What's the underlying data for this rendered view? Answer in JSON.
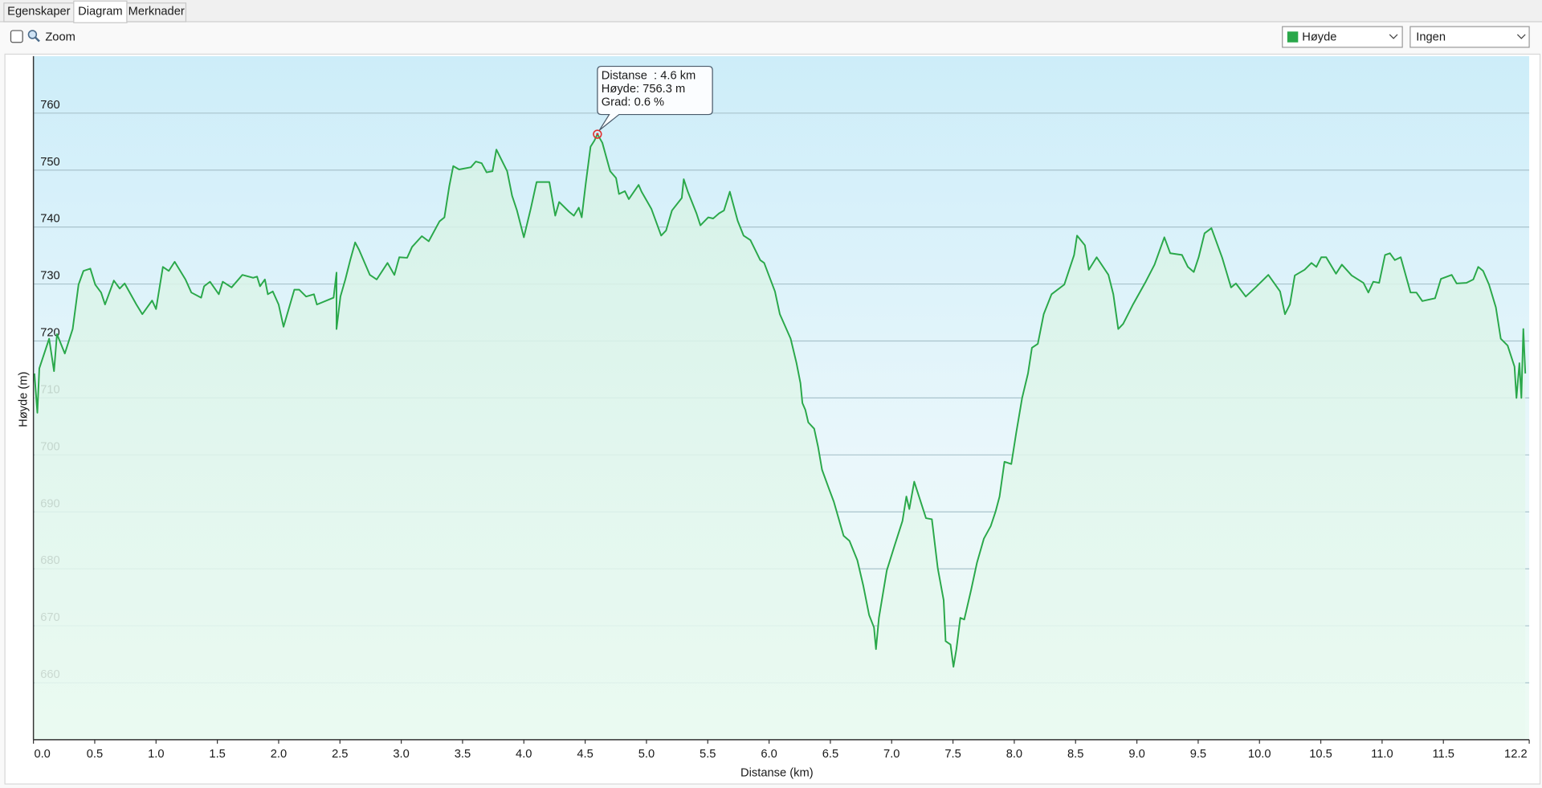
{
  "tabs": [
    "Egenskaper",
    "Diagram",
    "Merknader"
  ],
  "toolbar": {
    "zoom_label": "Zoom",
    "dropdown_2": "Ingen"
  },
  "chart_data": {
    "type": "area",
    "x_label": "Distanse  (km)",
    "y_label": "Høyde (m)",
    "x": [
      0.008,
      0.032,
      0.048,
      0.128,
      0.168,
      0.192,
      0.256,
      0.32,
      0.368,
      0.408,
      0.464,
      0.504,
      0.552,
      0.584,
      0.656,
      0.704,
      0.744,
      0.84,
      0.888,
      0.968,
      1.0,
      1.056,
      1.104,
      1.152,
      1.24,
      1.288,
      1.368,
      1.392,
      1.44,
      1.512,
      1.544,
      1.616,
      1.704,
      1.792,
      1.824,
      1.848,
      1.888,
      1.912,
      1.952,
      2.0,
      2.04,
      2.128,
      2.168,
      2.224,
      2.288,
      2.312,
      2.448,
      2.472,
      2.472,
      2.504,
      2.544,
      2.584,
      2.624,
      2.656,
      2.744,
      2.8,
      2.888,
      2.944,
      2.984,
      3.048,
      3.088,
      3.168,
      3.224,
      3.312,
      3.352,
      3.392,
      3.424,
      3.472,
      3.568,
      3.608,
      3.656,
      3.696,
      3.744,
      3.776,
      3.864,
      3.904,
      3.944,
      4.0,
      4.056,
      4.104,
      4.208,
      4.256,
      4.288,
      4.368,
      4.408,
      4.448,
      4.472,
      4.504,
      4.544,
      4.576,
      4.6,
      4.64,
      4.704,
      4.752,
      4.776,
      4.824,
      4.856,
      4.936,
      4.96,
      5.04,
      5.12,
      5.16,
      5.208,
      5.288,
      5.304,
      5.336,
      5.408,
      5.44,
      5.504,
      5.544,
      5.592,
      5.632,
      5.68,
      5.744,
      5.792,
      5.848,
      5.928,
      5.96,
      6.048,
      6.088,
      6.176,
      6.224,
      6.256,
      6.272,
      6.296,
      6.32,
      6.368,
      6.4,
      6.432,
      6.488,
      6.528,
      6.608,
      6.656,
      6.72,
      6.768,
      6.816,
      6.856,
      6.872,
      6.896,
      6.96,
      7.024,
      7.088,
      7.12,
      7.144,
      7.184,
      7.28,
      7.328,
      7.376,
      7.424,
      7.44,
      7.48,
      7.504,
      7.528,
      7.56,
      7.592,
      7.648,
      7.696,
      7.752,
      7.808,
      7.848,
      7.88,
      7.92,
      7.976,
      8.016,
      8.064,
      8.112,
      8.144,
      8.192,
      8.24,
      8.304,
      8.408,
      8.448,
      8.488,
      8.512,
      8.576,
      8.608,
      8.672,
      8.768,
      8.808,
      8.848,
      8.888,
      8.968,
      9.072,
      9.144,
      9.224,
      9.272,
      9.368,
      9.416,
      9.464,
      9.504,
      9.552,
      9.608,
      9.696,
      9.768,
      9.808,
      9.888,
      9.968,
      10.072,
      10.168,
      10.208,
      10.248,
      10.288,
      10.368,
      10.424,
      10.464,
      10.504,
      10.544,
      10.624,
      10.672,
      10.752,
      10.848,
      10.888,
      10.928,
      10.976,
      11.024,
      11.064,
      11.104,
      11.152,
      11.232,
      11.28,
      11.328,
      11.432,
      11.48,
      11.568,
      11.608,
      11.688,
      11.744,
      11.784,
      11.824,
      11.872,
      11.928,
      11.968,
      12.024,
      12.08,
      12.096,
      12.12,
      12.136,
      12.152,
      12.168
    ],
    "series": [
      {
        "name": "Høyde",
        "color": "#2aa84a",
        "values": [
          714.3,
          707.4,
          715.2,
          720.4,
          714.7,
          721.2,
          717.8,
          722.1,
          729.9,
          732.3,
          732.7,
          729.9,
          728.5,
          726.4,
          730.6,
          729.2,
          730.1,
          726.4,
          724.7,
          727.1,
          725.6,
          733.0,
          732.3,
          733.9,
          730.8,
          728.5,
          727.6,
          729.6,
          730.4,
          728.2,
          730.4,
          729.4,
          731.6,
          731.1,
          731.3,
          729.6,
          730.8,
          728.2,
          728.7,
          726.4,
          722.5,
          729.0,
          729.0,
          727.8,
          728.2,
          726.4,
          727.6,
          732.0,
          722.1,
          727.8,
          730.8,
          734.2,
          737.3,
          736.0,
          731.6,
          730.8,
          733.7,
          731.6,
          734.7,
          734.6,
          736.5,
          738.4,
          737.5,
          741.0,
          741.7,
          747.2,
          750.7,
          750.1,
          750.5,
          751.5,
          751.2,
          749.6,
          749.8,
          753.6,
          749.8,
          745.5,
          742.9,
          738.2,
          743.2,
          747.9,
          747.9,
          742.0,
          744.4,
          742.7,
          742.0,
          743.4,
          741.7,
          747.5,
          754.1,
          755.2,
          756.3,
          754.8,
          749.8,
          748.6,
          745.8,
          746.3,
          744.9,
          747.4,
          746.2,
          743.2,
          738.5,
          739.4,
          742.9,
          745.1,
          748.4,
          746.3,
          742.4,
          740.3,
          741.7,
          741.5,
          742.4,
          742.9,
          746.2,
          741.1,
          738.5,
          737.7,
          734.2,
          733.7,
          728.7,
          724.7,
          720.4,
          716.1,
          712.6,
          709.1,
          707.9,
          705.7,
          704.6,
          701.4,
          697.4,
          694.1,
          691.8,
          685.8,
          684.9,
          681.5,
          677.1,
          671.9,
          669.7,
          665.9,
          671.4,
          679.7,
          684.1,
          688.4,
          692.7,
          690.5,
          695.3,
          688.9,
          688.7,
          680.1,
          674.5,
          667.3,
          666.7,
          662.8,
          665.9,
          671.4,
          671.1,
          676.3,
          681.1,
          685.3,
          687.5,
          690.1,
          692.7,
          698.8,
          698.4,
          703.9,
          710.0,
          714.3,
          718.8,
          719.5,
          724.7,
          728.2,
          729.9,
          732.5,
          735.1,
          738.5,
          736.8,
          732.5,
          734.7,
          731.6,
          728.2,
          722.1,
          723.0,
          726.4,
          730.4,
          733.4,
          738.2,
          735.4,
          735.1,
          733.0,
          732.1,
          734.7,
          738.9,
          739.8,
          734.6,
          729.4,
          730.1,
          727.8,
          729.4,
          731.6,
          728.7,
          724.7,
          726.4,
          731.5,
          732.5,
          733.7,
          733.0,
          734.7,
          734.7,
          731.8,
          733.4,
          731.5,
          730.2,
          728.5,
          730.4,
          730.2,
          735.1,
          735.4,
          734.2,
          734.7,
          728.5,
          728.5,
          727.0,
          727.5,
          730.9,
          731.6,
          730.1,
          730.2,
          730.8,
          733.0,
          732.3,
          729.9,
          725.9,
          720.4,
          719.2,
          715.5,
          710.0,
          716.1,
          710.0,
          722.1,
          714.3
        ]
      }
    ],
    "xlim": [
      0,
      12.2
    ],
    "ylim": [
      650,
      770
    ],
    "xticks": [
      {
        "value": 0,
        "label": "0.0"
      },
      0.5,
      {
        "value": 1,
        "label": "1.0"
      },
      1.5,
      {
        "value": 2,
        "label": "2.0"
      },
      2.5,
      {
        "value": 3,
        "label": "3.0"
      },
      3.5,
      {
        "value": 4,
        "label": "4.0"
      },
      4.5,
      {
        "value": 5,
        "label": "5.0"
      },
      5.5,
      {
        "value": 6,
        "label": "6.0"
      },
      6.5,
      {
        "value": 7,
        "label": "7.0"
      },
      7.5,
      {
        "value": 8,
        "label": "8.0"
      },
      8.5,
      {
        "value": 9,
        "label": "9.0"
      },
      9.5,
      {
        "value": 10,
        "label": "10.0"
      },
      10.5,
      {
        "value": 11,
        "label": "11.0"
      },
      11.5,
      12.2
    ],
    "yticks": [
      660,
      670,
      680,
      690,
      700,
      710,
      720,
      730,
      740,
      750,
      760
    ],
    "grid": true,
    "tooltip": {
      "x": 4.6,
      "y": 756.3,
      "lines": [
        "Distanse  : 4.6 km",
        "Høyde: 756.3 m",
        "Grad: 0.6 %"
      ]
    }
  }
}
